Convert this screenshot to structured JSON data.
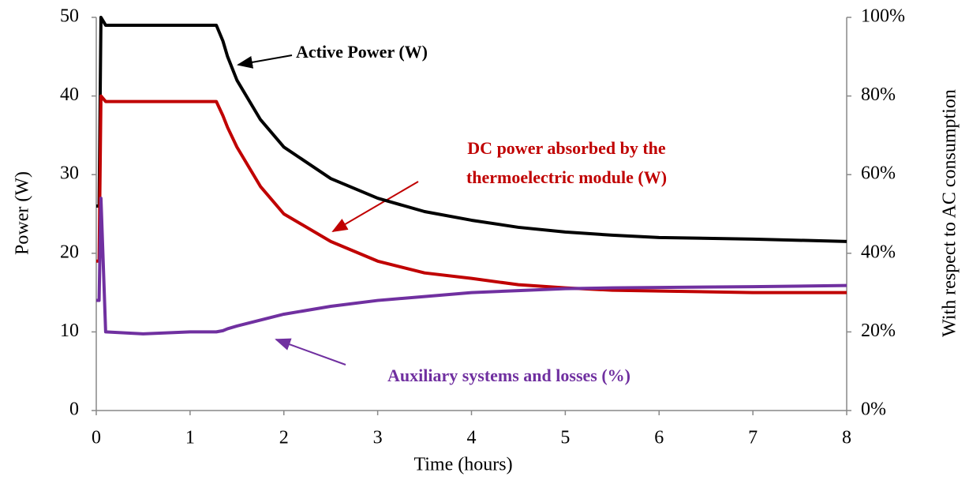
{
  "chart_data": {
    "type": "line",
    "x_label": "Time (hours)",
    "y_label": "Power  (W)",
    "y2_label": "With respect to AC consumption",
    "x": [
      0,
      0.03,
      0.05,
      0.1,
      0.5,
      1,
      1.28,
      1.35,
      1.4,
      1.5,
      1.75,
      2,
      2.5,
      3,
      3.5,
      4,
      4.5,
      5,
      5.5,
      6,
      7,
      8
    ],
    "series": [
      {
        "name": "Active Power (W)",
        "color": "#000000",
        "values": [
          26,
          26,
          50,
          49,
          49,
          49,
          49,
          47,
          45,
          42,
          37,
          33.5,
          29.5,
          27,
          25.3,
          24.2,
          23.3,
          22.7,
          22.3,
          22,
          21.8,
          21.5
        ]
      },
      {
        "name": "DC power absorbed by the thermoelectric module (W)",
        "color": "#c00000",
        "values": [
          19,
          19,
          40,
          39.3,
          39.3,
          39.3,
          39.3,
          37.5,
          36,
          33.5,
          28.5,
          25,
          21.5,
          19,
          17.5,
          16.8,
          16,
          15.6,
          15.3,
          15.2,
          15,
          15
        ]
      },
      {
        "name": "Auxiliary systems and losses (%)",
        "color": "#7030a0",
        "axis": "y2",
        "values": [
          28,
          28,
          54,
          20,
          19.5,
          20,
          20,
          20.3,
          20.8,
          21.5,
          23,
          24.5,
          26.5,
          28,
          29,
          30,
          30.5,
          31,
          31.2,
          31.3,
          31.5,
          31.8
        ]
      }
    ],
    "annotations": [
      {
        "lines": [
          "Active Power (W)"
        ],
        "color": "#000000"
      },
      {
        "lines": [
          "DC power absorbed by the",
          "thermoelectric module (W)"
        ],
        "color": "#c00000"
      },
      {
        "lines": [
          "Auxiliary systems and losses (%)"
        ],
        "color": "#7030a0"
      }
    ],
    "xlim": [
      0,
      8
    ],
    "xticks": [
      0,
      1,
      2,
      3,
      4,
      5,
      6,
      7,
      8
    ],
    "ylim": [
      0,
      50
    ],
    "yticks": [
      0,
      10,
      20,
      30,
      40,
      50
    ],
    "y2lim": [
      0,
      100
    ],
    "y2ticks": [
      {
        "value": 0,
        "label": "0%"
      },
      {
        "value": 20,
        "label": "20%"
      },
      {
        "value": 40,
        "label": "40%"
      },
      {
        "value": 60,
        "label": "60%"
      },
      {
        "value": 80,
        "label": "80%"
      },
      {
        "value": 100,
        "label": "100%"
      }
    ],
    "grid": false
  }
}
